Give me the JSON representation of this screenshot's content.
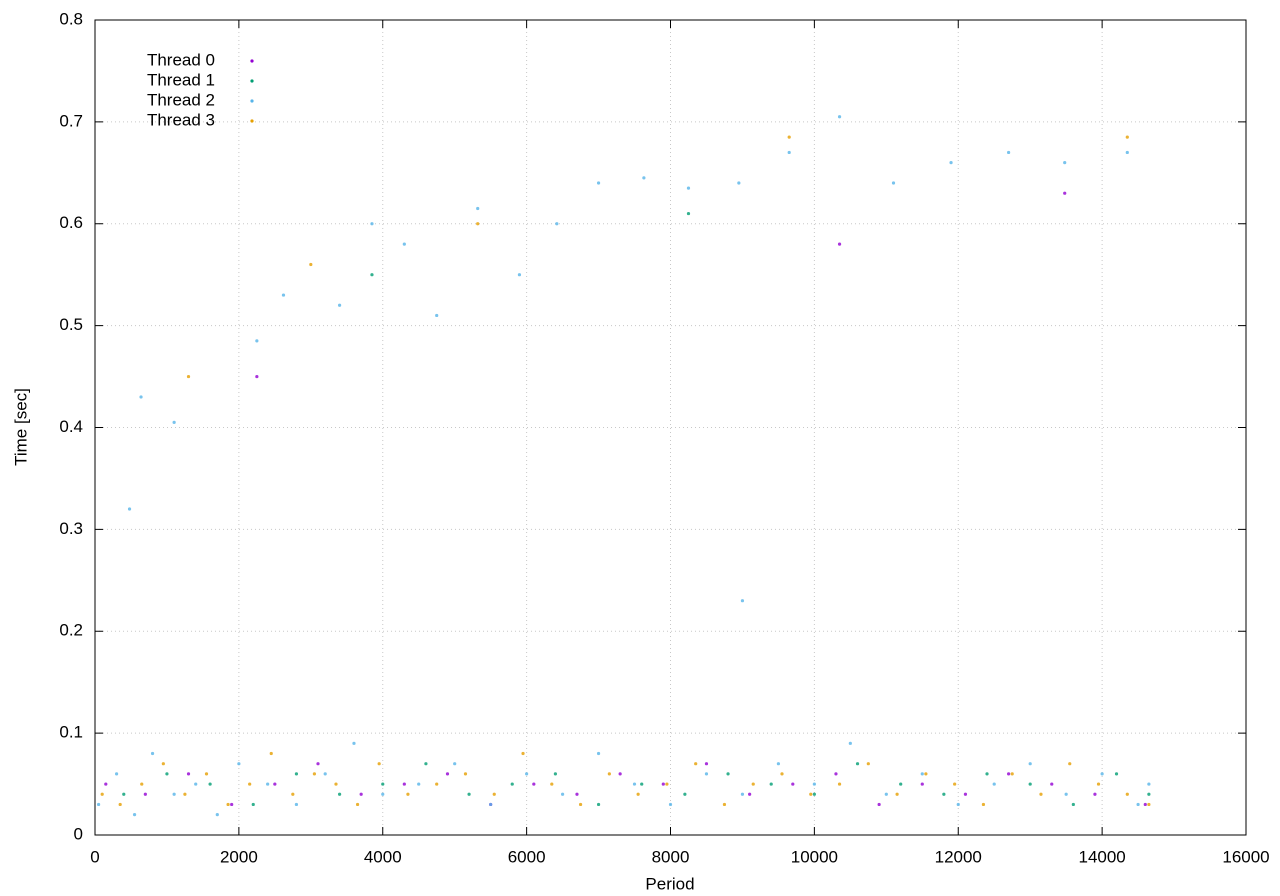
{
  "chart_data": {
    "type": "scatter",
    "xlabel": "Period",
    "ylabel": "Time [sec]",
    "xlim": [
      0,
      16000
    ],
    "ylim": [
      0,
      0.8
    ],
    "xticks": [
      0,
      2000,
      4000,
      6000,
      8000,
      10000,
      12000,
      14000,
      16000
    ],
    "yticks": [
      0,
      0.1,
      0.2,
      0.3,
      0.4,
      0.5,
      0.6,
      0.7,
      0.8
    ],
    "grid": true,
    "legend": "top-left",
    "series": [
      {
        "name": "Thread 0",
        "color": "#9400d3",
        "x": [
          150,
          700,
          1300,
          1900,
          2500,
          3100,
          3700,
          4300,
          4900,
          5500,
          6100,
          6700,
          7300,
          7900,
          8500,
          9100,
          9700,
          10300,
          10900,
          11500,
          12100,
          12700,
          13300,
          13900,
          14600,
          2250,
          10350,
          13480
        ],
        "values": [
          0.05,
          0.04,
          0.06,
          0.03,
          0.05,
          0.07,
          0.04,
          0.05,
          0.06,
          0.03,
          0.05,
          0.04,
          0.06,
          0.05,
          0.07,
          0.04,
          0.05,
          0.06,
          0.03,
          0.05,
          0.04,
          0.06,
          0.05,
          0.04,
          0.03,
          0.45,
          0.58,
          0.63
        ]
      },
      {
        "name": "Thread 1",
        "color": "#009e73",
        "x": [
          400,
          1000,
          1600,
          2200,
          2800,
          3400,
          4000,
          4600,
          5200,
          5800,
          6400,
          7000,
          7600,
          8200,
          8800,
          9400,
          10000,
          10600,
          11200,
          11800,
          12400,
          13000,
          13600,
          14200,
          14650,
          3850,
          8250
        ],
        "values": [
          0.04,
          0.06,
          0.05,
          0.03,
          0.06,
          0.04,
          0.05,
          0.07,
          0.04,
          0.05,
          0.06,
          0.03,
          0.05,
          0.04,
          0.06,
          0.05,
          0.04,
          0.07,
          0.05,
          0.04,
          0.06,
          0.05,
          0.03,
          0.06,
          0.04,
          0.55,
          0.61
        ]
      },
      {
        "name": "Thread 2",
        "color": "#56b4e9",
        "x": [
          50,
          300,
          550,
          800,
          1100,
          1400,
          1700,
          2000,
          2400,
          2800,
          3200,
          3600,
          4000,
          4500,
          5000,
          5500,
          6000,
          6500,
          7000,
          7500,
          8000,
          8500,
          9000,
          9500,
          10000,
          10500,
          11000,
          11500,
          12000,
          12500,
          13000,
          13500,
          14000,
          14500,
          14650,
          480,
          640,
          1100,
          2250,
          2620,
          3400,
          3850,
          4300,
          4750,
          5320,
          5900,
          6420,
          7000,
          7630,
          8250,
          8950,
          9000,
          9650,
          10350,
          11100,
          11900,
          12700,
          13480,
          14350
        ],
        "values": [
          0.03,
          0.06,
          0.02,
          0.08,
          0.04,
          0.05,
          0.02,
          0.07,
          0.05,
          0.03,
          0.06,
          0.09,
          0.04,
          0.05,
          0.07,
          0.03,
          0.06,
          0.04,
          0.08,
          0.05,
          0.03,
          0.06,
          0.04,
          0.07,
          0.05,
          0.09,
          0.04,
          0.06,
          0.03,
          0.05,
          0.07,
          0.04,
          0.06,
          0.03,
          0.05,
          0.32,
          0.43,
          0.405,
          0.485,
          0.53,
          0.52,
          0.6,
          0.58,
          0.51,
          0.615,
          0.55,
          0.6,
          0.64,
          0.645,
          0.635,
          0.64,
          0.23,
          0.67,
          0.705,
          0.64,
          0.66,
          0.67,
          0.66,
          0.67
        ]
      },
      {
        "name": "Thread 3",
        "color": "#e69f00",
        "x": [
          100,
          350,
          650,
          950,
          1250,
          1550,
          1850,
          2150,
          2450,
          2750,
          3050,
          3350,
          3650,
          3950,
          4350,
          4750,
          5150,
          5550,
          5950,
          6350,
          6750,
          7150,
          7550,
          7950,
          8350,
          8750,
          9150,
          9550,
          9950,
          10350,
          10750,
          11150,
          11550,
          11950,
          12350,
          12750,
          13150,
          13550,
          13950,
          14350,
          14650,
          1300,
          3000,
          5320,
          9650,
          14350
        ],
        "values": [
          0.04,
          0.03,
          0.05,
          0.07,
          0.04,
          0.06,
          0.03,
          0.05,
          0.08,
          0.04,
          0.06,
          0.05,
          0.03,
          0.07,
          0.04,
          0.05,
          0.06,
          0.04,
          0.08,
          0.05,
          0.03,
          0.06,
          0.04,
          0.05,
          0.07,
          0.03,
          0.05,
          0.06,
          0.04,
          0.05,
          0.07,
          0.04,
          0.06,
          0.05,
          0.03,
          0.06,
          0.04,
          0.07,
          0.05,
          0.04,
          0.03,
          0.45,
          0.56,
          0.6,
          0.685,
          0.685
        ]
      }
    ]
  }
}
